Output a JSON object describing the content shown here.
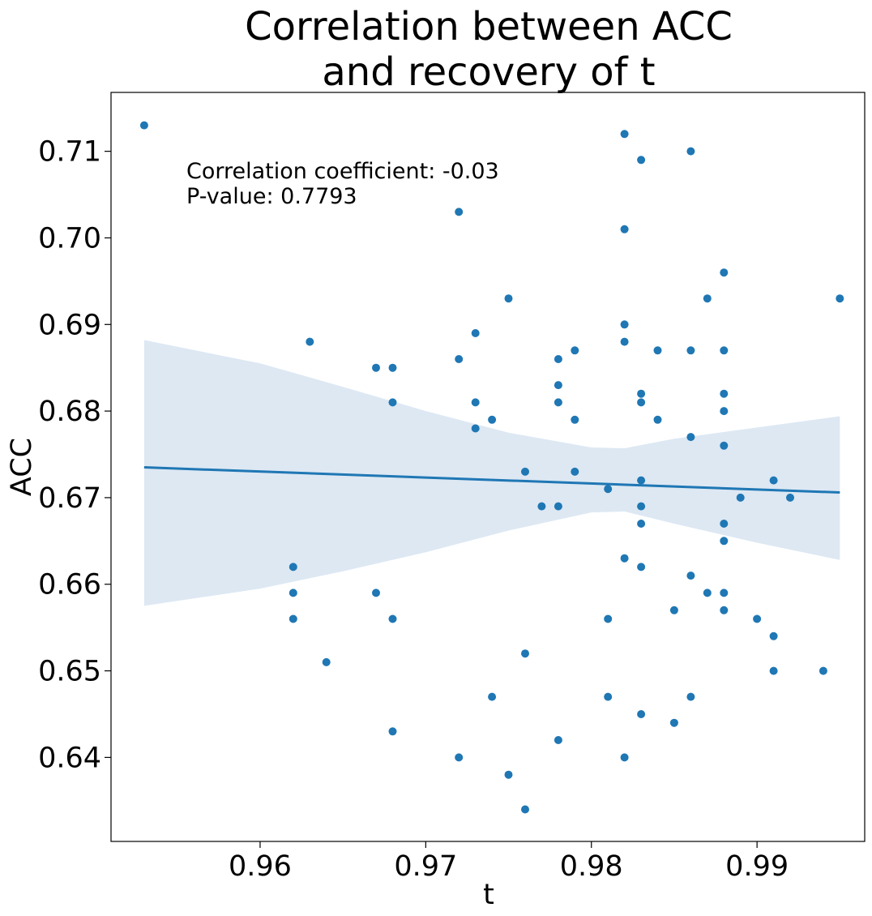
{
  "chart_data": {
    "type": "scatter",
    "title_lines": [
      "Correlation between ACC",
      "and recovery of t"
    ],
    "xlabel": "t",
    "ylabel": "ACC",
    "xlim": [
      0.951,
      0.9965
    ],
    "ylim": [
      0.6303,
      0.7168
    ],
    "xticks": [
      0.96,
      0.97,
      0.98,
      0.99
    ],
    "xtick_labels": [
      "0.96",
      "0.97",
      "0.98",
      "0.99"
    ],
    "yticks": [
      0.64,
      0.65,
      0.66,
      0.67,
      0.68,
      0.69,
      0.7,
      0.71
    ],
    "ytick_labels": [
      "0.64",
      "0.65",
      "0.66",
      "0.67",
      "0.68",
      "0.69",
      "0.70",
      "0.71"
    ],
    "annotations": [
      "Correlation coefficient: -0.03",
      "P-value: 0.7793"
    ],
    "grid": false,
    "colors": {
      "points": "#1f77b4",
      "line": "#1f77b4",
      "band": "#dde8f3"
    },
    "points": [
      [
        0.953,
        0.713
      ],
      [
        0.962,
        0.662
      ],
      [
        0.962,
        0.659
      ],
      [
        0.962,
        0.656
      ],
      [
        0.963,
        0.688
      ],
      [
        0.964,
        0.651
      ],
      [
        0.967,
        0.685
      ],
      [
        0.967,
        0.659
      ],
      [
        0.968,
        0.685
      ],
      [
        0.968,
        0.681
      ],
      [
        0.968,
        0.656
      ],
      [
        0.968,
        0.643
      ],
      [
        0.972,
        0.703
      ],
      [
        0.972,
        0.686
      ],
      [
        0.972,
        0.64
      ],
      [
        0.973,
        0.689
      ],
      [
        0.973,
        0.681
      ],
      [
        0.973,
        0.678
      ],
      [
        0.974,
        0.679
      ],
      [
        0.974,
        0.647
      ],
      [
        0.975,
        0.693
      ],
      [
        0.975,
        0.638
      ],
      [
        0.976,
        0.673
      ],
      [
        0.976,
        0.652
      ],
      [
        0.976,
        0.634
      ],
      [
        0.977,
        0.669
      ],
      [
        0.978,
        0.686
      ],
      [
        0.978,
        0.683
      ],
      [
        0.978,
        0.681
      ],
      [
        0.978,
        0.669
      ],
      [
        0.978,
        0.642
      ],
      [
        0.979,
        0.687
      ],
      [
        0.979,
        0.679
      ],
      [
        0.979,
        0.673
      ],
      [
        0.981,
        0.671
      ],
      [
        0.981,
        0.656
      ],
      [
        0.981,
        0.647
      ],
      [
        0.982,
        0.712
      ],
      [
        0.982,
        0.701
      ],
      [
        0.982,
        0.69
      ],
      [
        0.982,
        0.688
      ],
      [
        0.982,
        0.663
      ],
      [
        0.982,
        0.64
      ],
      [
        0.983,
        0.709
      ],
      [
        0.983,
        0.682
      ],
      [
        0.983,
        0.681
      ],
      [
        0.983,
        0.672
      ],
      [
        0.983,
        0.669
      ],
      [
        0.983,
        0.667
      ],
      [
        0.983,
        0.662
      ],
      [
        0.983,
        0.645
      ],
      [
        0.984,
        0.687
      ],
      [
        0.984,
        0.679
      ],
      [
        0.985,
        0.657
      ],
      [
        0.985,
        0.644
      ],
      [
        0.986,
        0.71
      ],
      [
        0.986,
        0.687
      ],
      [
        0.986,
        0.677
      ],
      [
        0.986,
        0.661
      ],
      [
        0.986,
        0.647
      ],
      [
        0.987,
        0.693
      ],
      [
        0.987,
        0.659
      ],
      [
        0.988,
        0.696
      ],
      [
        0.988,
        0.687
      ],
      [
        0.988,
        0.682
      ],
      [
        0.988,
        0.68
      ],
      [
        0.988,
        0.676
      ],
      [
        0.988,
        0.667
      ],
      [
        0.988,
        0.665
      ],
      [
        0.988,
        0.659
      ],
      [
        0.988,
        0.657
      ],
      [
        0.989,
        0.67
      ],
      [
        0.99,
        0.656
      ],
      [
        0.991,
        0.672
      ],
      [
        0.991,
        0.654
      ],
      [
        0.991,
        0.65
      ],
      [
        0.992,
        0.67
      ],
      [
        0.994,
        0.65
      ],
      [
        0.995,
        0.693
      ]
    ],
    "regression_line": {
      "x": [
        0.953,
        0.995
      ],
      "y": [
        0.6735,
        0.6706
      ]
    },
    "confidence_band": {
      "x": [
        0.953,
        0.96,
        0.965,
        0.97,
        0.975,
        0.98,
        0.982,
        0.985,
        0.99,
        0.995
      ],
      "upper": [
        0.6882,
        0.6855,
        0.6828,
        0.68,
        0.6775,
        0.6758,
        0.6757,
        0.6768,
        0.6781,
        0.6794
      ],
      "lower": [
        0.6575,
        0.6595,
        0.6615,
        0.6637,
        0.6662,
        0.6683,
        0.6684,
        0.667,
        0.6648,
        0.6628
      ]
    }
  }
}
